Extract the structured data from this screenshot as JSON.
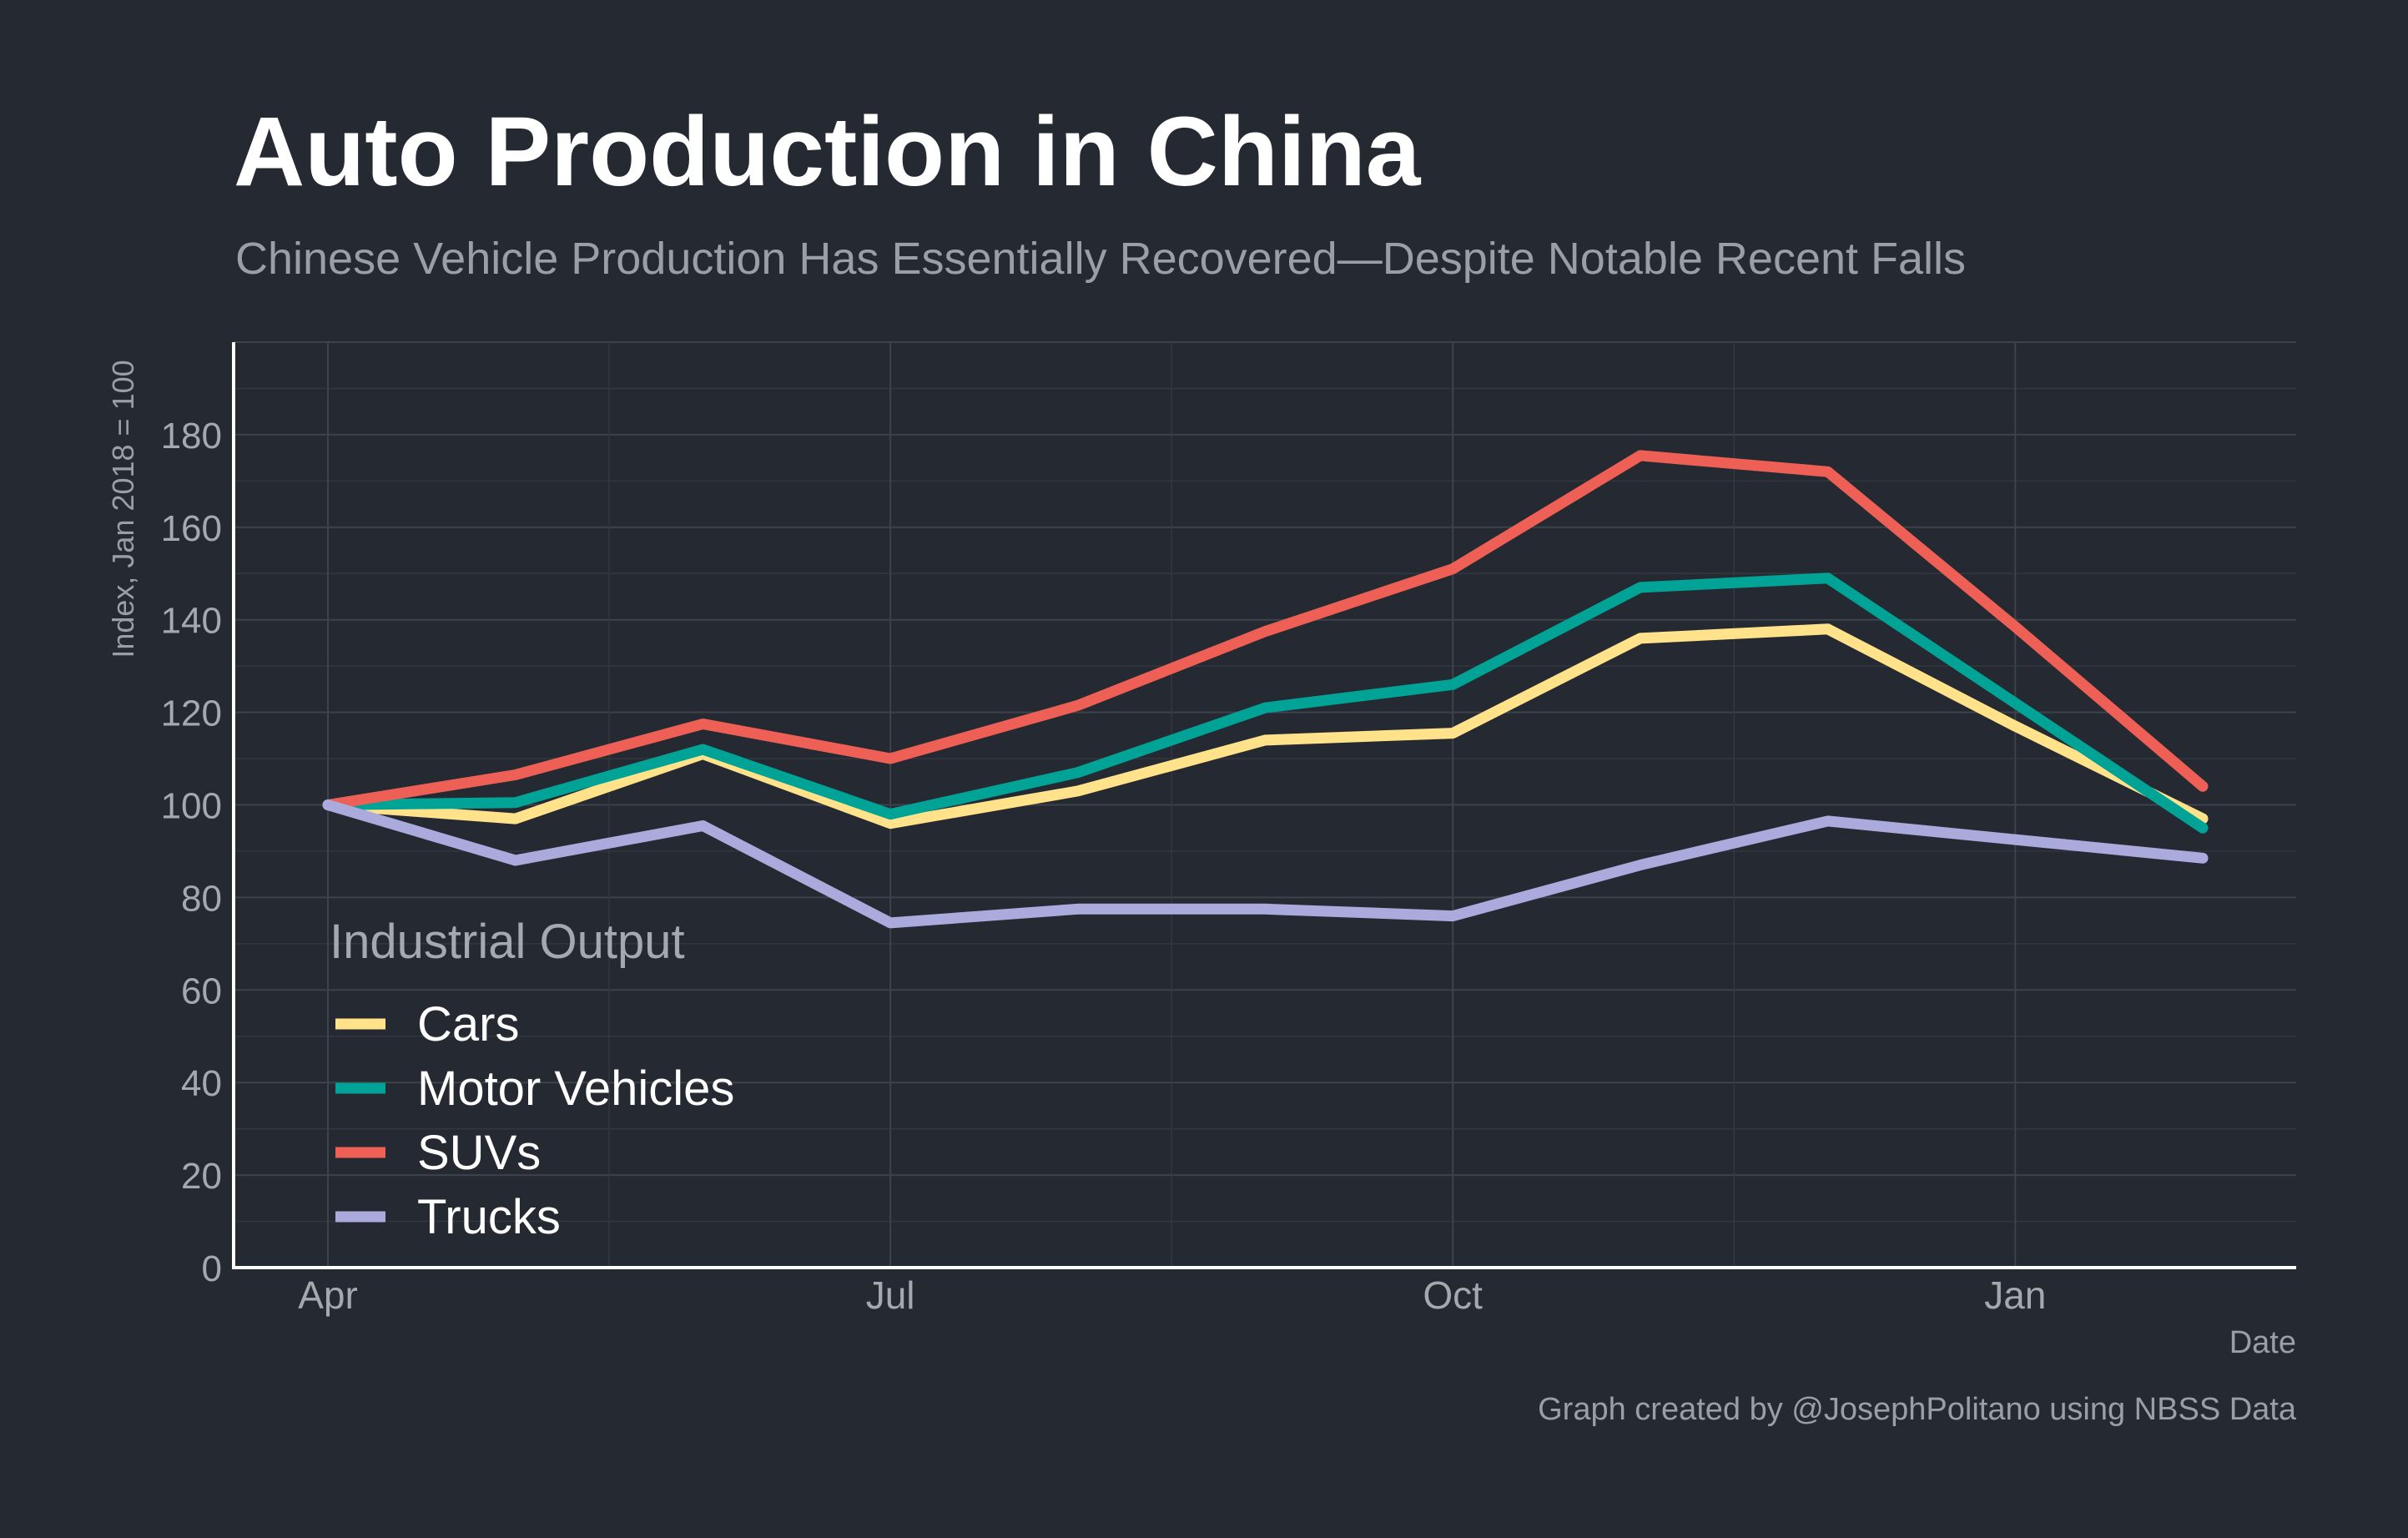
{
  "chart_data": {
    "type": "line",
    "title": "Auto Production in China",
    "subtitle": "Chinese Vehicle Production Has Essentially Recovered—Despite Notable Recent Falls",
    "ylabel": "Index, Jan 2018 = 100",
    "xlabel": "Date",
    "caption": "Graph created by @JosephPolitano using NBSS Data",
    "x": [
      "2020-04",
      "2020-05",
      "2020-06",
      "2020-07",
      "2020-08",
      "2020-09",
      "2020-10",
      "2020-11",
      "2020-12",
      "2021-01",
      "2021-02"
    ],
    "x_ticks": [
      {
        "x": "2020-04",
        "label": "Apr"
      },
      {
        "x": "2020-07",
        "label": "Jul"
      },
      {
        "x": "2020-10",
        "label": "Oct"
      },
      {
        "x": "2021-01",
        "label": "Jan"
      }
    ],
    "ylim": [
      0,
      200
    ],
    "y_ticks": [
      0,
      20,
      40,
      60,
      80,
      100,
      120,
      140,
      160,
      180
    ],
    "grid": true,
    "legend": {
      "title": "Industrial Output",
      "placement": "bottom-left"
    },
    "series": [
      {
        "name": "Cars",
        "color": "#ffe28a",
        "values": [
          100,
          97,
          111,
          96,
          103,
          114,
          115.5,
          136,
          138,
          117,
          97
        ]
      },
      {
        "name": "Motor Vehicles",
        "color": "#00a396",
        "values": [
          100,
          100.5,
          112,
          98,
          107,
          121,
          126,
          147,
          149,
          122,
          95
        ]
      },
      {
        "name": "SUVs",
        "color": "#ee6055",
        "values": [
          100,
          106.5,
          117.5,
          110,
          121.5,
          137.5,
          151,
          175.5,
          172,
          138.5,
          104
        ]
      },
      {
        "name": "Trucks",
        "color": "#aaaadd",
        "values": [
          100,
          88,
          95.5,
          74.5,
          77.5,
          77.5,
          76,
          87,
          96.5,
          92.5,
          88.5
        ]
      }
    ]
  }
}
